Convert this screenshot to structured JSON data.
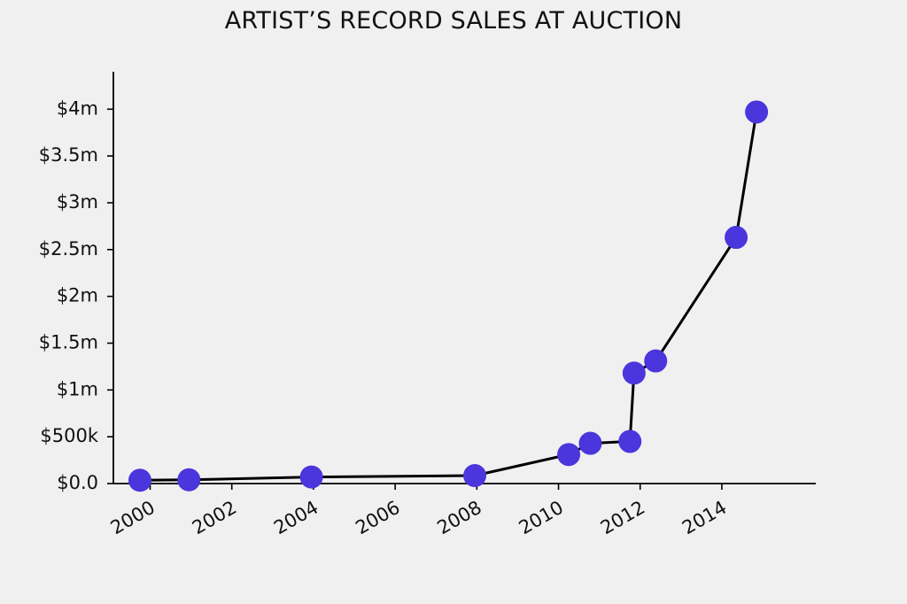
{
  "chart_data": {
    "type": "line",
    "title": "ARTIST’S RECORD SALES AT AUCTION",
    "xlabel": "",
    "ylabel": "",
    "x_ticks": [
      "2000",
      "2002",
      "2004",
      "2006",
      "2008",
      "2010",
      "2012",
      "2014"
    ],
    "y_ticks": [
      "$0.0",
      "$500k",
      "$1m",
      "$1.5m",
      "$2m",
      "$2.5m",
      "$3m",
      "$3.5m",
      "$4m"
    ],
    "y_tick_values": [
      0,
      500000,
      1000000,
      1500000,
      2000000,
      2500000,
      3000000,
      3500000,
      4000000
    ],
    "xlim": [
      1999.1,
      2016.3
    ],
    "ylim": [
      0,
      4400000
    ],
    "grid": false,
    "line_color": "#000000",
    "marker_color": "#4b35dc",
    "series": [
      {
        "x": [
          1999.75,
          2000.95,
          2003.95,
          2007.95,
          2010.25,
          2010.78,
          2011.75,
          2011.85,
          2012.38,
          2014.35,
          2014.85
        ],
        "values": [
          35000,
          40000,
          70000,
          85000,
          310000,
          430000,
          450000,
          1180000,
          1310000,
          2630000,
          3970000
        ]
      }
    ]
  }
}
